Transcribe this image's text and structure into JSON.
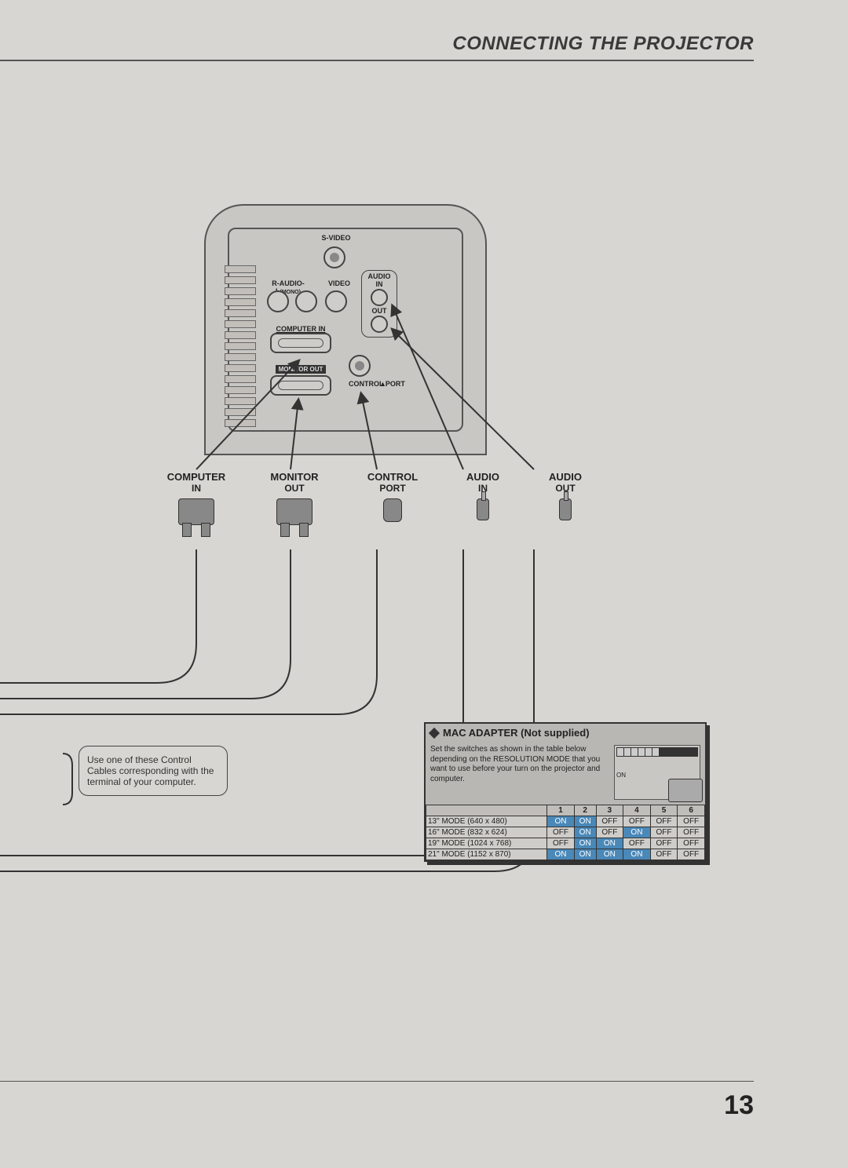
{
  "page": {
    "title": "CONNECTING THE PROJECTOR",
    "number": "13"
  },
  "panel": {
    "svideo": "S-VIDEO",
    "r_audio_l": "R-AUDIO-L",
    "mono": "(MONO)",
    "video": "VIDEO",
    "audio": "AUDIO",
    "in": "IN",
    "out": "OUT",
    "computer_in": "COMPUTER IN",
    "monitor_out": "MONITOR OUT",
    "control_port": "CONTROL PORT"
  },
  "connectors": {
    "computer_in_l1": "COMPUTER",
    "computer_in_l2": "IN",
    "monitor_out_l1": "MONITOR",
    "monitor_out_l2": "OUT",
    "control_port_l1": "CONTROL",
    "control_port_l2": "PORT",
    "audio_in_l1": "AUDIO",
    "audio_in_l2": "IN",
    "audio_out_l1": "AUDIO",
    "audio_out_l2": "OUT"
  },
  "note": {
    "text": "Use one of these Control Cables corresponding with the terminal of your computer."
  },
  "mac": {
    "title": "MAC ADAPTER (Not supplied)",
    "desc": "Set the switches as shown in the table below depending on the RESOLUTION MODE that you want to use before your turn on the projector and computer.",
    "on_label": "ON",
    "off_label": "OFF",
    "table": {
      "on": "ON",
      "off": "OFF",
      "columns": [
        "1",
        "2",
        "3",
        "4",
        "5",
        "6"
      ],
      "rows": [
        {
          "mode": "13\" MODE (640 x 480)",
          "switches": [
            "ON",
            "ON",
            "OFF",
            "OFF",
            "OFF",
            "OFF"
          ]
        },
        {
          "mode": "16\" MODE (832 x 624)",
          "switches": [
            "OFF",
            "ON",
            "OFF",
            "ON",
            "OFF",
            "OFF"
          ]
        },
        {
          "mode": "19\" MODE (1024 x 768)",
          "switches": [
            "OFF",
            "ON",
            "ON",
            "OFF",
            "OFF",
            "OFF"
          ]
        },
        {
          "mode": "21\" MODE (1152 x 870)",
          "switches": [
            "ON",
            "ON",
            "ON",
            "ON",
            "OFF",
            "OFF"
          ]
        }
      ]
    }
  },
  "colors": {
    "page_bg": "#d8d6d2",
    "ink": "#333333",
    "on_cell": "#4a88b8"
  }
}
